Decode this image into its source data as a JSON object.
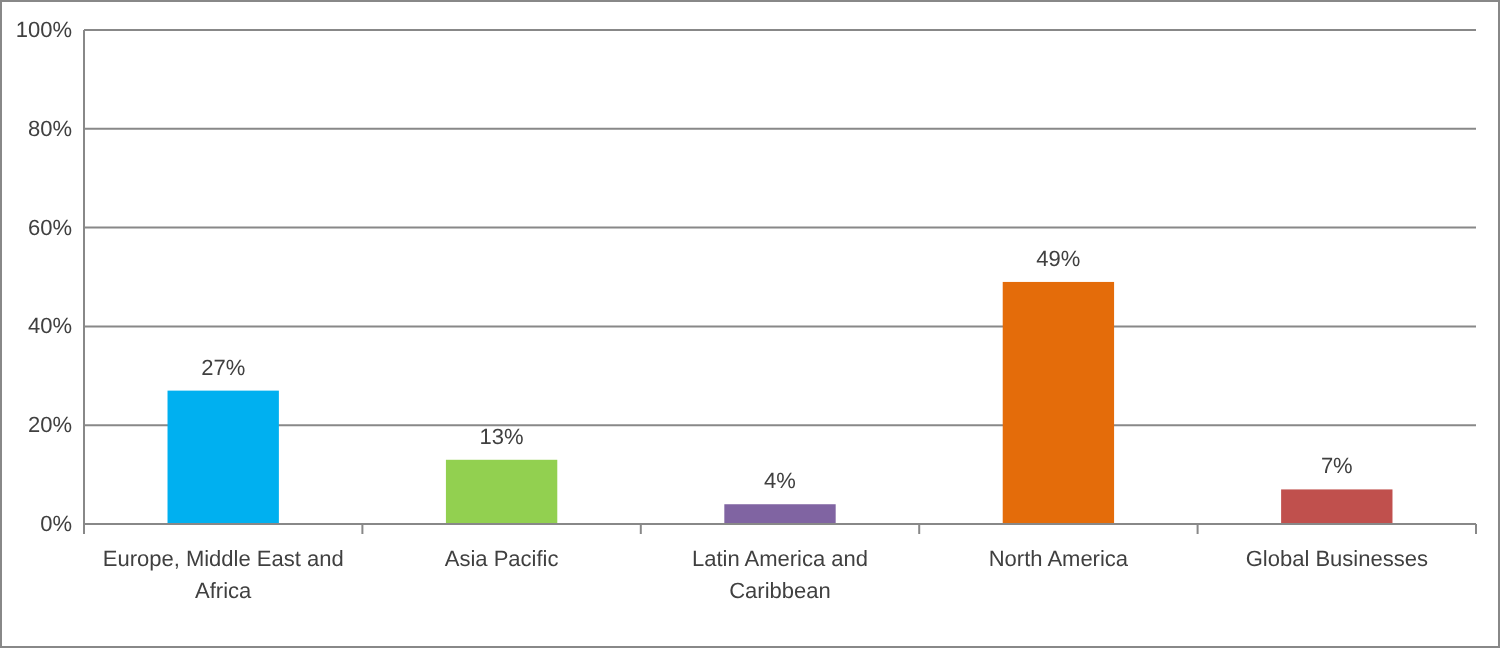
{
  "chart_data": {
    "type": "bar",
    "categories": [
      "Europe, Middle East and Africa",
      "Asia Pacific",
      "Latin America and Caribbean",
      "North America",
      "Global Businesses"
    ],
    "values": [
      27,
      13,
      4,
      49,
      7
    ],
    "colors": [
      "#00b0f0",
      "#92d050",
      "#8064a2",
      "#e46c0a",
      "#c0504d"
    ],
    "value_labels": [
      "27%",
      "13%",
      "4%",
      "49%",
      "7%"
    ],
    "ylim": [
      0,
      100
    ],
    "yticks": [
      {
        "value": 0,
        "label": "0%"
      },
      {
        "value": 20,
        "label": "20%"
      },
      {
        "value": 40,
        "label": "40%"
      },
      {
        "value": 60,
        "label": "60%"
      },
      {
        "value": 80,
        "label": "80%"
      },
      {
        "value": 100,
        "label": "100%"
      }
    ],
    "grid": "y"
  }
}
